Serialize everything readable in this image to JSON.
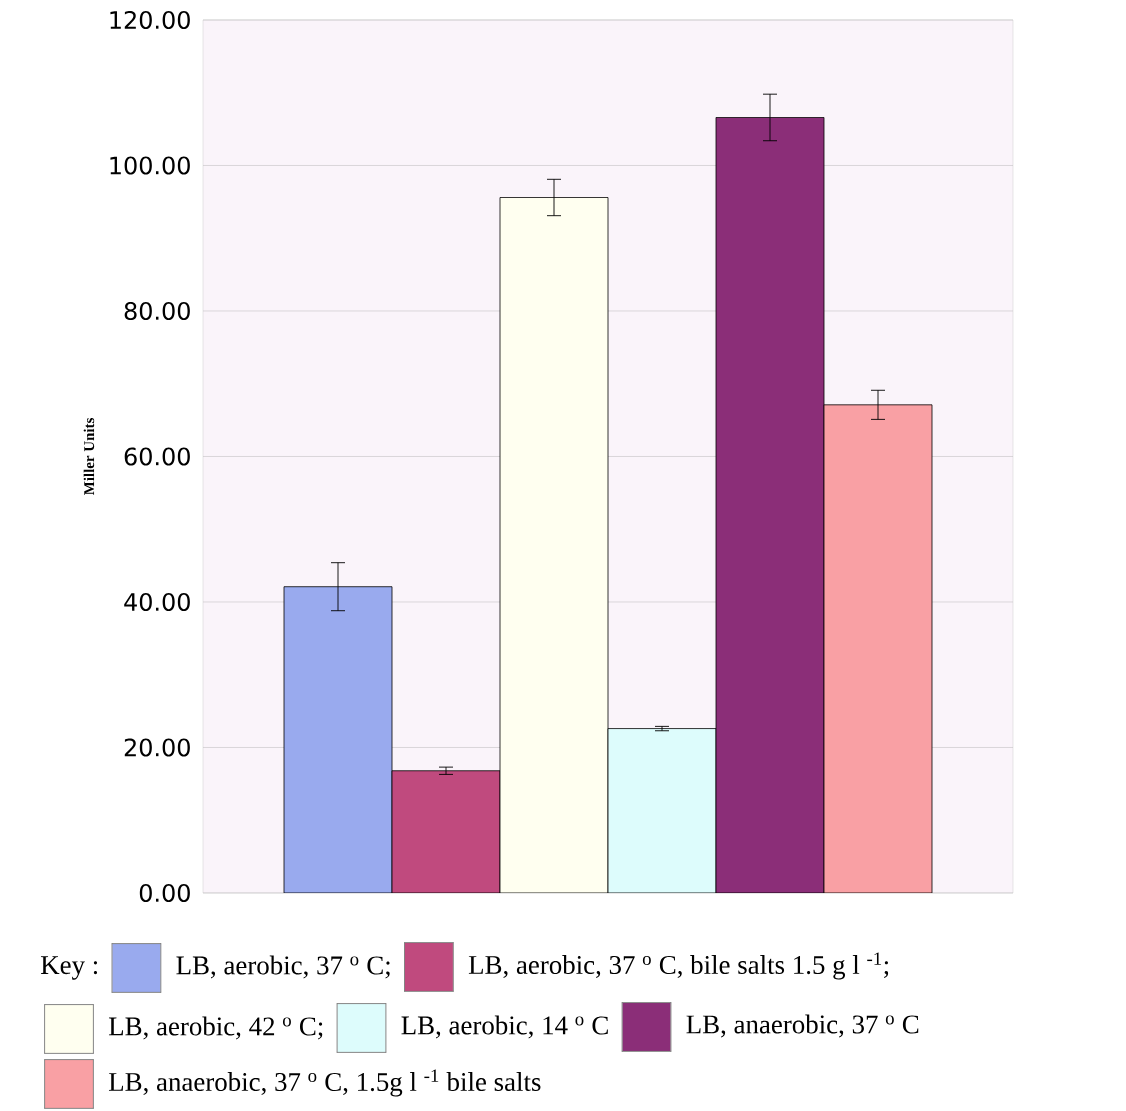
{
  "chart_data": {
    "type": "bar",
    "ylabel": "Miller Units",
    "legend_title": "Key :",
    "categories": [
      null
    ],
    "series": [
      {
        "name": "LB, aerobic, 37 $^{o}$ C;",
        "color": "#99aaee",
        "values": [
          42.1
        ],
        "errors": [
          3.3
        ]
      },
      {
        "name": "LB, aerobic, 37 $^{o}$ C, bile salts 1.5 g l $^{-1}$;",
        "color": "#c04a7e",
        "values": [
          16.8
        ],
        "errors": [
          0.5
        ]
      },
      {
        "name": "LB, aerobic, 42 $^{o}$ C;",
        "color": "#fffff0",
        "values": [
          95.6
        ],
        "errors": [
          2.5
        ]
      },
      {
        "name": "LB, aerobic, 14 $^{o}$ C",
        "color": "#ddfcfc",
        "values": [
          22.6
        ],
        "errors": [
          0.3
        ]
      },
      {
        "name": "LB, anaerobic, 37 $^{o}$ C",
        "color": "#8b2e78",
        "values": [
          106.6
        ],
        "errors": [
          3.2
        ]
      },
      {
        "name": "LB, anaerobic, 37 $^{o}$ C, 1.5g l $^{-1}$ bile salts",
        "color": "#f9a0a4",
        "values": [
          67.1
        ],
        "errors": [
          2.0
        ]
      }
    ],
    "ylim": [
      0,
      120
    ],
    "yticks": [
      {
        "value": 0,
        "label": "0.00"
      },
      {
        "value": 20,
        "label": "20.00"
      },
      {
        "value": 40,
        "label": "40.00"
      },
      {
        "value": 60,
        "label": "60.00"
      },
      {
        "value": 80,
        "label": "80.00"
      },
      {
        "value": 100,
        "label": "100.00"
      },
      {
        "value": 120,
        "label": "120.00"
      }
    ],
    "grid": "y",
    "legend": "bottom"
  }
}
